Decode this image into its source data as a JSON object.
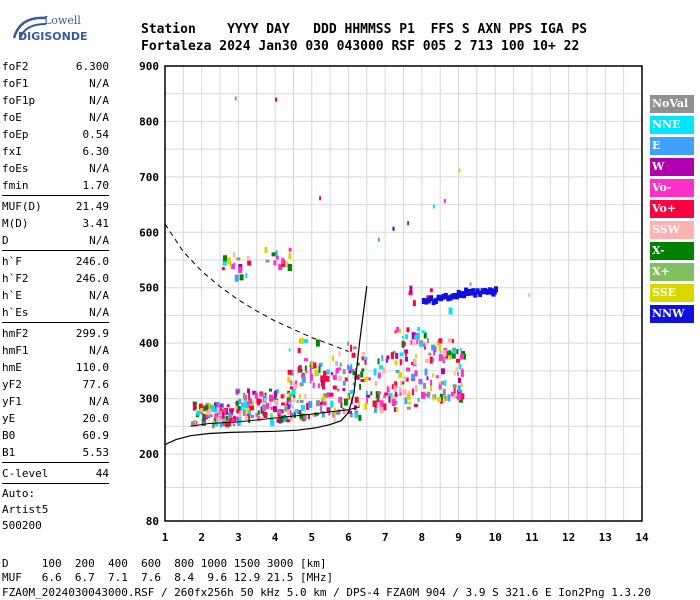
{
  "logo": {
    "line1": "Lowell",
    "line2": "DIGISONDE"
  },
  "header": {
    "labels": "Station    YYYY DAY   DDD HHMMSS P1  FFS S AXN PPS IGA PS",
    "values": "Fortaleza 2024 Jan30 030 043000 RSF 005 2 713 100 10+ 22"
  },
  "parameters": {
    "group1": [
      {
        "name": "foF2",
        "value": "6.300"
      },
      {
        "name": "foF1",
        "value": "N/A"
      },
      {
        "name": "foF1p",
        "value": "N/A"
      },
      {
        "name": "foE",
        "value": "N/A"
      },
      {
        "name": "foEp",
        "value": "0.54"
      },
      {
        "name": "fxI",
        "value": "6.30"
      },
      {
        "name": "foEs",
        "value": "N/A"
      },
      {
        "name": "fmin",
        "value": "1.70"
      }
    ],
    "group2": [
      {
        "name": "MUF(D)",
        "value": "21.49"
      },
      {
        "name": "M(D)",
        "value": "3.41"
      },
      {
        "name": "D",
        "value": "N/A"
      }
    ],
    "group3": [
      {
        "name": "h`F",
        "value": "246.0"
      },
      {
        "name": "h`F2",
        "value": "246.0"
      },
      {
        "name": "h`E",
        "value": "N/A"
      },
      {
        "name": "h`Es",
        "value": "N/A"
      }
    ],
    "group4": [
      {
        "name": "hmF2",
        "value": "299.9"
      },
      {
        "name": "hmF1",
        "value": "N/A"
      },
      {
        "name": "hmE",
        "value": "110.0"
      },
      {
        "name": "yF2",
        "value": "77.6"
      },
      {
        "name": "yF1",
        "value": "N/A"
      },
      {
        "name": "yE",
        "value": "20.0"
      },
      {
        "name": "B0",
        "value": "60.9"
      },
      {
        "name": "B1",
        "value": "5.53"
      }
    ],
    "group5": [
      {
        "name": "C-level",
        "value": "44"
      }
    ],
    "auto": [
      "Auto:",
      "Artist5",
      "500200"
    ]
  },
  "legend": [
    {
      "label": "NoVal",
      "color": "#909090"
    },
    {
      "label": "NNE",
      "color": "#00e5ff"
    },
    {
      "label": "E",
      "color": "#3fa0ff"
    },
    {
      "label": "W",
      "color": "#b000b0"
    },
    {
      "label": "Vo-",
      "color": "#ff30c8"
    },
    {
      "label": "Vo+",
      "color": "#ff0040"
    },
    {
      "label": "SSW",
      "color": "#ffb0b0"
    },
    {
      "label": "X-",
      "color": "#008000"
    },
    {
      "label": "X+",
      "color": "#80c060"
    },
    {
      "label": "SSE",
      "color": "#d8d800"
    },
    {
      "label": "NNW",
      "color": "#1010e0"
    }
  ],
  "dmuf": {
    "d_label": "D",
    "d_values": "100  200  400  600  800 1000 1500 3000 [km]",
    "muf_label": "MUF",
    "muf_values": "6.6  6.7  7.1  7.6  8.4  9.6 12.9 21.5 [MHz]"
  },
  "footer": "FZA0M_2024030043000.RSF / 260fx256h 50 kHz 5.0 km / DPS-4 FZA0M 904 / 3.9 S 321.6 E   Ion2Png 1.3.20",
  "chart_data": {
    "type": "scatter",
    "xlim": [
      1,
      14
    ],
    "ylim": [
      80,
      900
    ],
    "xticks": [
      1,
      2,
      3,
      4,
      5,
      6,
      7,
      8,
      9,
      10,
      11,
      12,
      13,
      14
    ],
    "yticks": [
      80,
      200,
      300,
      400,
      500,
      600,
      700,
      800,
      900
    ],
    "grid": true,
    "legend_position": "right",
    "curves": {
      "dashed": {
        "x": [
          1.0,
          1.5,
          2.0,
          2.5,
          3.0,
          3.5,
          4.0,
          4.5,
          5.0,
          5.5,
          6.0
        ],
        "y": [
          615,
          565,
          530,
          502,
          478,
          458,
          440,
          425,
          410,
          398,
          385
        ]
      },
      "solid_profile": {
        "x": [
          1.0,
          1.3,
          1.7,
          2.2,
          2.8,
          3.4,
          4.0,
          4.6,
          5.1,
          5.5,
          5.8,
          6.0,
          6.15,
          6.3,
          6.5
        ],
        "y": [
          217,
          226,
          233,
          237,
          239,
          240,
          241,
          243,
          247,
          253,
          260,
          275,
          310,
          400,
          503
        ]
      },
      "trace_low": {
        "x": [
          1.7,
          2.2,
          3.0,
          4.0,
          5.0,
          5.5,
          6.0,
          6.3
        ],
        "y": [
          250,
          255,
          258,
          265,
          272,
          276,
          280,
          285
        ]
      }
    },
    "echo_regions": [
      {
        "x": [
          1.7,
          3.0
        ],
        "y": [
          255,
          295
        ],
        "density": 90
      },
      {
        "x": [
          2.9,
          4.5
        ],
        "y": [
          262,
          320
        ],
        "density": 110
      },
      {
        "x": [
          4.4,
          6.3
        ],
        "y": [
          270,
          370
        ],
        "density": 120
      },
      {
        "x": [
          6.3,
          7.8
        ],
        "y": [
          280,
          390
        ],
        "density": 90
      },
      {
        "x": [
          7.8,
          9.1
        ],
        "y": [
          300,
          410
        ],
        "density": 90
      },
      {
        "x": [
          2.5,
          3.3
        ],
        "y": [
          520,
          565
        ],
        "density": 18
      },
      {
        "x": [
          3.7,
          4.4
        ],
        "y": [
          540,
          575
        ],
        "density": 14
      },
      {
        "x": [
          4.3,
          6.2
        ],
        "y": [
          330,
          410
        ],
        "density": 22
      },
      {
        "x": [
          7.2,
          8.2
        ],
        "y": [
          400,
          430
        ],
        "density": 18
      },
      {
        "x": [
          7.5,
          9.0
        ],
        "y": [
          460,
          505
        ],
        "density": 6
      }
    ],
    "nnw_trace": {
      "x": [
        8.0,
        8.4,
        8.8,
        9.1,
        9.4,
        9.8,
        10.0
      ],
      "y": [
        480,
        483,
        490,
        495,
        497,
        498,
        500
      ]
    },
    "sparse_points": [
      {
        "x": 2.9,
        "y": 845
      },
      {
        "x": 4.0,
        "y": 843
      },
      {
        "x": 10.9,
        "y": 490
      },
      {
        "x": 9.0,
        "y": 715
      },
      {
        "x": 8.3,
        "y": 650
      },
      {
        "x": 8.6,
        "y": 660
      },
      {
        "x": 7.6,
        "y": 620
      },
      {
        "x": 7.2,
        "y": 610
      },
      {
        "x": 6.8,
        "y": 590
      },
      {
        "x": 5.2,
        "y": 665
      },
      {
        "x": 9.3,
        "y": 510
      }
    ]
  }
}
